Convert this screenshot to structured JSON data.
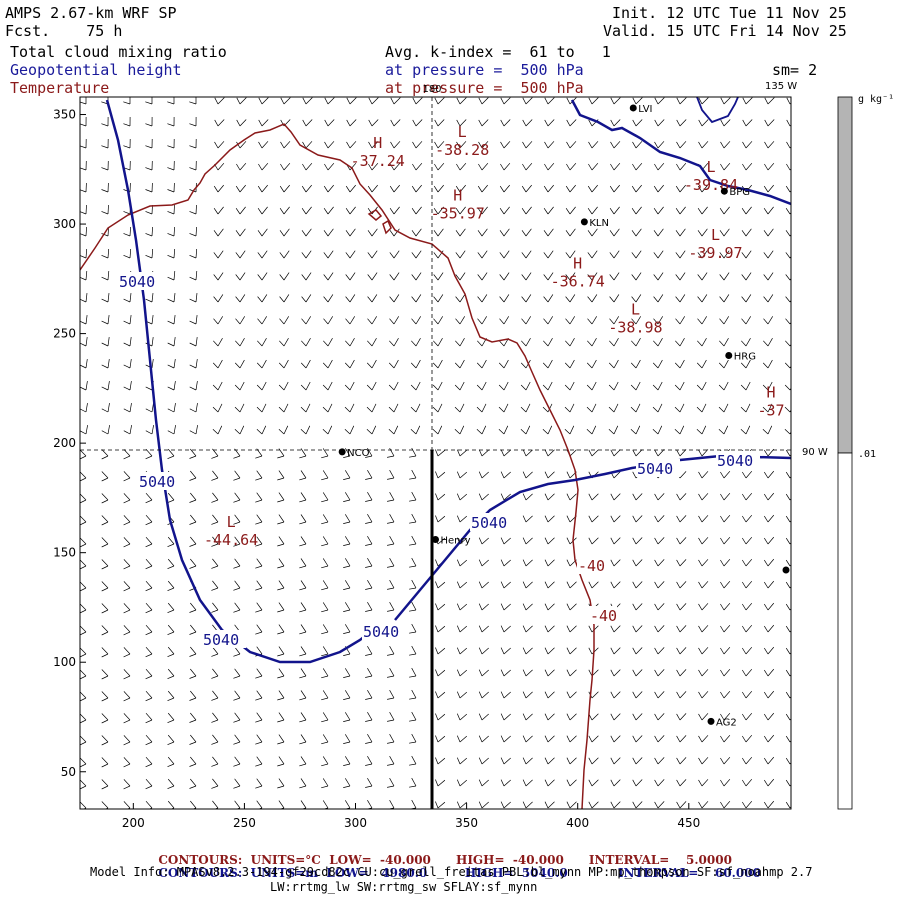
{
  "header": {
    "model": "AMPS 2.67-km WRF SP",
    "fcst": "Fcst.    75 h",
    "init": "Init. 12 UTC Tue 11 Nov 25",
    "valid": "Valid. 15 UTC Fri 14 Nov 25",
    "fields": [
      "Total cloud mixing ratio",
      "Geopotential height",
      "Temperature"
    ],
    "avg": "Avg. k-index =  61 to   1",
    "pressure1": "at pressure =  500 hPa",
    "pressure2": "at pressure =  500 hPa",
    "sm": "sm= 2"
  },
  "map": {
    "x_ticks": [
      200,
      250,
      300,
      350,
      400,
      450
    ],
    "y_ticks": [
      50,
      100,
      150,
      200,
      250,
      300,
      350
    ],
    "xlim": [
      176,
      496
    ],
    "ylim": [
      33,
      358
    ],
    "lon_labels": {
      "lon180": "180",
      "lon135": "135 W",
      "lon90": "90 W"
    },
    "highs_lows": [
      {
        "letter": "H",
        "value": "-37.24",
        "x": 310,
        "y": 332
      },
      {
        "letter": "L",
        "value": "-38.28",
        "x": 348,
        "y": 337
      },
      {
        "letter": "H",
        "value": "-35.97",
        "x": 346,
        "y": 308
      },
      {
        "letter": "L",
        "value": "-39.84",
        "x": 460,
        "y": 321
      },
      {
        "letter": "L",
        "value": "-39.97",
        "x": 462,
        "y": 290
      },
      {
        "letter": "H",
        "value": "-36.74",
        "x": 400,
        "y": 277
      },
      {
        "letter": "L",
        "value": "-38.98",
        "x": 426,
        "y": 256
      },
      {
        "letter": "H",
        "value": "-37",
        "x": 487,
        "y": 218
      },
      {
        "letter": "L",
        "value": "-44.64",
        "x": 244,
        "y": 159
      }
    ],
    "stations": [
      {
        "name": "LVI",
        "x": 425,
        "y": 353
      },
      {
        "name": "BPG",
        "x": 466,
        "y": 315
      },
      {
        "name": "KLN",
        "x": 403,
        "y": 301
      },
      {
        "name": "HRG",
        "x": 468,
        "y": 240
      },
      {
        "name": "NCO",
        "x": 294,
        "y": 196
      },
      {
        "name": "Henry",
        "x": 336,
        "y": 156
      },
      {
        "name": "AG2",
        "x": 460,
        "y": 73
      }
    ],
    "height_labels": [
      "5040",
      "5040",
      "5040",
      "5040",
      "5040",
      "5040",
      "5040"
    ],
    "temp_labels": [
      "-40",
      "-40"
    ]
  },
  "colorbar": {
    "units": "g kg⁻¹",
    "low_value": ".01",
    "colors": {
      "gray": "#b4b4b4",
      "white": "#ffffff"
    }
  },
  "footer": {
    "line1": {
      "label": "CONTOURS:",
      "units": "UNITS=°C",
      "low": "LOW=  -40.000",
      "high": "HIGH=  -40.000",
      "interval": "INTERVAL=    5.0000"
    },
    "line2": {
      "label": "CONTOURS:",
      "units": "UNITS=m",
      "low": "LOW=   4980.0",
      "high": "HIGH=  5040.0",
      "interval": "INTERVAL=    60.000"
    },
    "model_info": "Model Info: MPASv8.2.3-194-gf29cd82c CU:cu_grell_freitas PBL:bl_mynn MP:mp_thompson SF:sf_noahmp 2.7",
    "model_info2": "LW:rrtmg_lw SW:rrtmg_sw SFLAY:sf_mynn"
  },
  "colors": {
    "height": "#12148c",
    "temperature": "#8b1a1a",
    "text_blue": "#1a1a9a"
  }
}
